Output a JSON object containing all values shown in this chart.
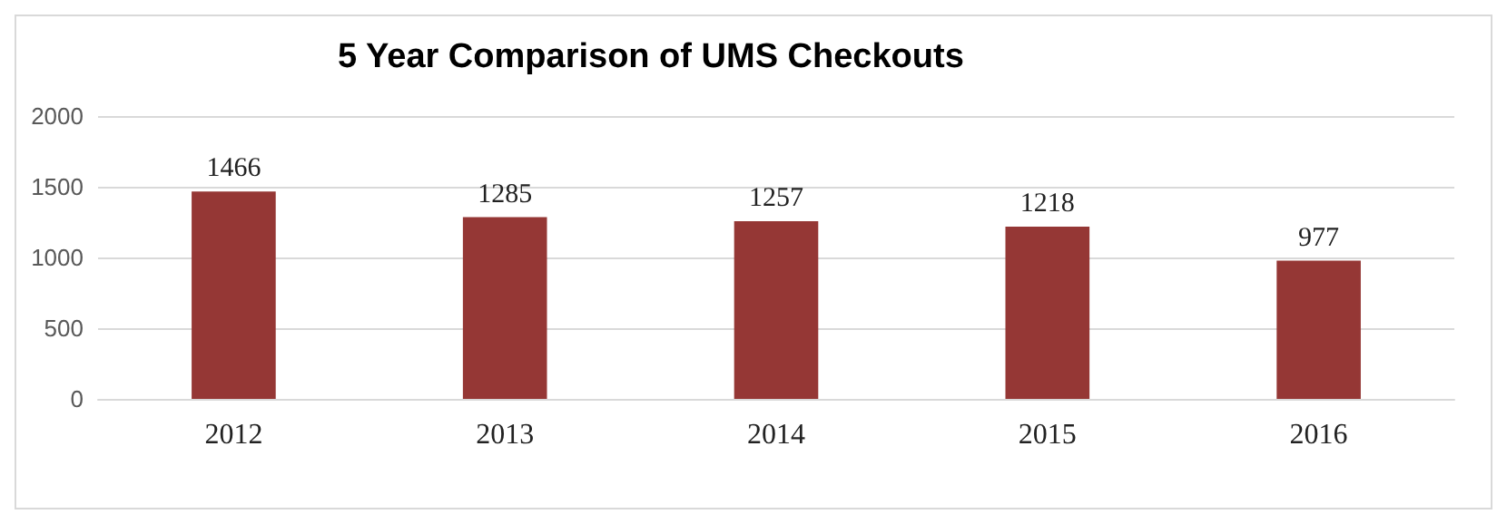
{
  "chart_data": {
    "type": "bar",
    "title": "5 Year Comparison of UMS Checkouts",
    "categories": [
      "2012",
      "2013",
      "2014",
      "2015",
      "2016"
    ],
    "values": [
      1466,
      1285,
      1257,
      1218,
      977
    ],
    "color": "#953735",
    "ylim": [
      0,
      2000
    ],
    "yticks": [
      0,
      500,
      1000,
      1500,
      2000
    ],
    "grid": "y",
    "data_labels": true
  }
}
